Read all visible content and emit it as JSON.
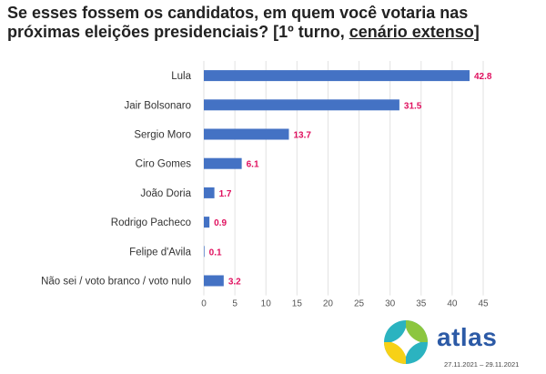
{
  "title": {
    "part1": "Se esses fossem os candidatos, em quem você votaria nas próximas eleições presidenciais? [1º turno, ",
    "part2": "cenário extenso",
    "part3": "]"
  },
  "colors": {
    "bar": "#4472c4",
    "label": "#e0115f",
    "axis_text": "#555555",
    "grid": "#e2e2e2"
  },
  "chart_data": {
    "type": "bar",
    "orientation": "horizontal",
    "title": "Se esses fossem os candidatos, em quem você votaria nas próximas eleições presidenciais? [1º turno, cenário extenso]",
    "categories": [
      "Lula",
      "Jair Bolsonaro",
      "Sergio Moro",
      "Ciro Gomes",
      "João Doria",
      "Rodrigo Pacheco",
      "Felipe d'Avila",
      "Não sei / voto branco / voto nulo"
    ],
    "values": [
      42.8,
      31.5,
      13.7,
      6.1,
      1.7,
      0.9,
      0.1,
      3.2
    ],
    "xlim": [
      0,
      45
    ],
    "xticks": [
      0,
      5,
      10,
      15,
      20,
      25,
      30,
      35,
      40,
      45
    ],
    "grid": true
  },
  "brand": {
    "name": "atlas",
    "date": "27.11.2021 – 29.11.2021"
  }
}
